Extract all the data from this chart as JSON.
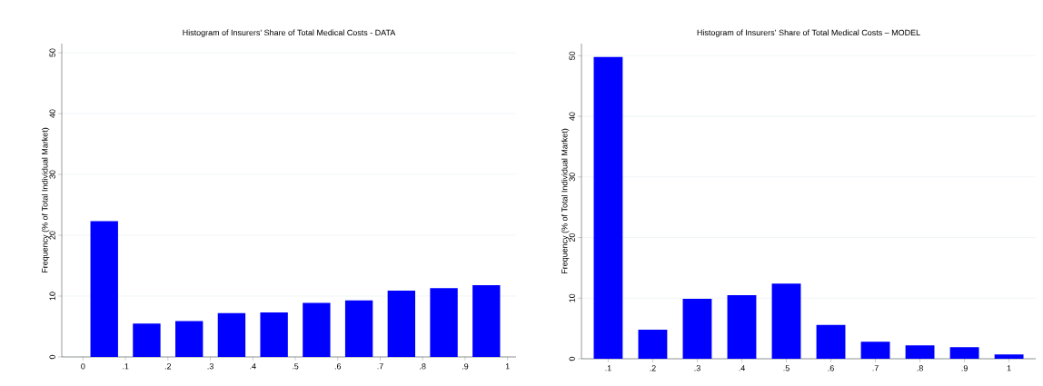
{
  "chart_data": [
    {
      "type": "bar",
      "title": "Histogram of Insurers' Share of Total Medical Costs - DATA",
      "ylabel": "Frequency (% of Total Individual Market)",
      "color": "#0000ff",
      "x": [
        0.05,
        0.15,
        0.25,
        0.35,
        0.45,
        0.55,
        0.65,
        0.75,
        0.85,
        0.95
      ],
      "values": [
        22.3,
        5.5,
        5.9,
        7.2,
        7.3,
        8.9,
        9.3,
        10.9,
        11.3,
        11.8
      ],
      "xlim": [
        -0.05,
        1.02
      ],
      "ylim": [
        0,
        51.5
      ],
      "xticks": [
        0,
        {
          "value": 0.1,
          "label": ".1"
        },
        {
          "value": 0.2,
          "label": ".2"
        },
        {
          "value": 0.3,
          "label": ".3"
        },
        {
          "value": 0.4,
          "label": ".4"
        },
        {
          "value": 0.5,
          "label": ".5"
        },
        {
          "value": 0.6,
          "label": ".6"
        },
        {
          "value": 0.7,
          "label": ".7"
        },
        {
          "value": 0.8,
          "label": ".8"
        },
        {
          "value": 0.9,
          "label": ".9"
        },
        1
      ],
      "yticks": [
        0,
        10,
        20,
        30,
        40,
        50
      ],
      "grid": "y"
    },
    {
      "type": "bar",
      "title": "Histogram of Insurers’ Share of Total Medical Costs – MODEL",
      "ylabel": "Frequency (% of Total Individual Market)",
      "color": "#0000ff",
      "x": [
        0.1,
        0.2,
        0.3,
        0.4,
        0.5,
        0.6,
        0.7,
        0.8,
        0.9,
        1.0
      ],
      "values": [
        49.8,
        4.8,
        9.9,
        10.5,
        12.4,
        5.6,
        2.8,
        2.2,
        1.9,
        0.7
      ],
      "xlim": [
        0.04,
        1.06
      ],
      "ylim": [
        0,
        52
      ],
      "xticks": [
        {
          "value": 0.1,
          "label": ".1"
        },
        {
          "value": 0.2,
          "label": ".2"
        },
        {
          "value": 0.3,
          "label": ".3"
        },
        {
          "value": 0.4,
          "label": ".4"
        },
        {
          "value": 0.5,
          "label": ".5"
        },
        {
          "value": 0.6,
          "label": ".6"
        },
        {
          "value": 0.7,
          "label": ".7"
        },
        {
          "value": 0.8,
          "label": ".8"
        },
        {
          "value": 0.9,
          "label": ".9"
        },
        1
      ],
      "yticks": [
        0,
        10,
        20,
        30,
        40,
        50
      ],
      "grid": "y"
    }
  ]
}
